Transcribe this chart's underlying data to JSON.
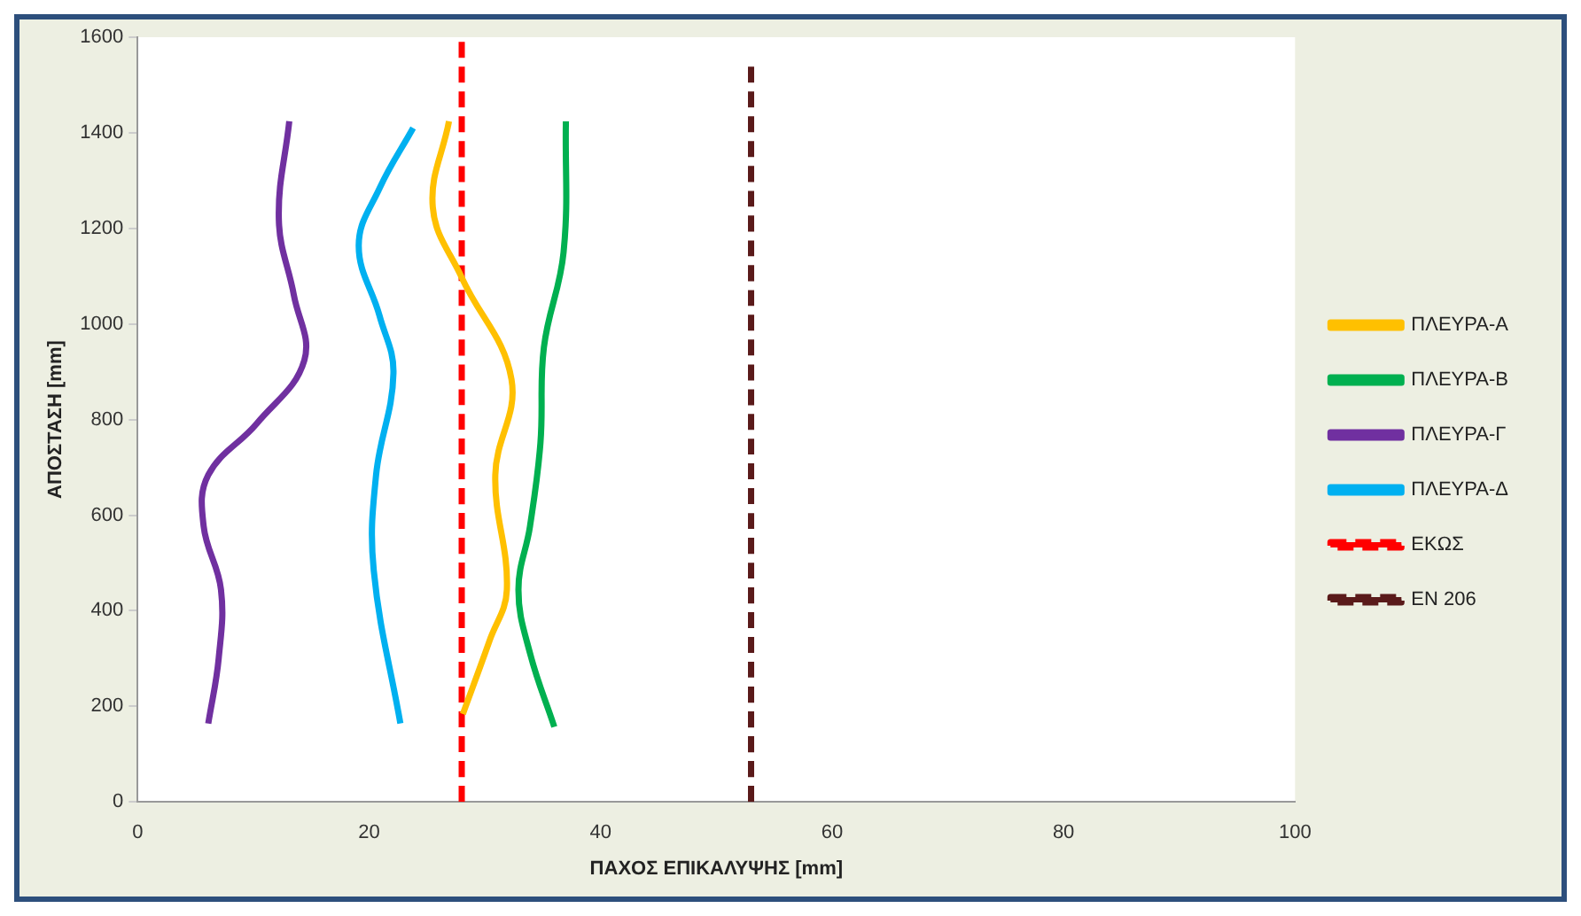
{
  "chart_data": {
    "type": "line",
    "xlabel": "ΠΑΧΟΣ ΕΠΙΚΑΛΥΨΗΣ [mm]",
    "ylabel": "ΑΠΟΣΤΑΣΗ [mm]",
    "xlim": [
      0,
      100
    ],
    "xticks": [
      0,
      20,
      40,
      60,
      80,
      100
    ],
    "ylim": [
      0,
      1600
    ],
    "yticks": [
      0,
      200,
      400,
      600,
      800,
      1000,
      1200,
      1400,
      1600
    ],
    "grid": false,
    "legend": "right",
    "series": [
      {
        "name": "ΠΛΕΥΡΑ-Α",
        "color": "#ffc000",
        "x": [
          28.1,
          30.4,
          31.9,
          30.9,
          32.3,
          28.0,
          25.5,
          26.9
        ],
        "values": [
          184,
          337,
          444,
          684,
          884,
          1097,
          1244,
          1424
        ]
      },
      {
        "name": "ΠΛΕΥΡΑ-Β",
        "color": "#00b050",
        "x": [
          36.0,
          33.9,
          32.9,
          33.9,
          34.8,
          35.1,
          36.8,
          37.0
        ],
        "values": [
          157,
          311,
          444,
          577,
          751,
          951,
          1150,
          1424
        ]
      },
      {
        "name": "ΠΛΕΥΡΑ-Γ",
        "color": "#7030a0",
        "x": [
          6.1,
          7.0,
          7.2,
          5.7,
          6.1,
          10.3,
          14.4,
          13.5,
          12.2,
          13.1
        ],
        "values": [
          164,
          300,
          444,
          577,
          684,
          792,
          924,
          1060,
          1217,
          1424
        ]
      },
      {
        "name": "ΠΛΕΥΡΑ-Δ",
        "color": "#00b0f0",
        "x": [
          22.7,
          20.4,
          20.6,
          22.1,
          20.9,
          19.1,
          20.9,
          23.8
        ],
        "values": [
          164,
          484,
          684,
          897,
          1017,
          1164,
          1284,
          1410
        ]
      },
      {
        "name": "ΕΚΩΣ",
        "color": "#ff0000",
        "line_style": "dashed",
        "x": [
          28,
          28
        ],
        "values": [
          0,
          1600
        ]
      },
      {
        "name": "ΕΝ 206",
        "color": "#5a1a1a",
        "line_style": "dashed",
        "x": [
          53,
          53
        ],
        "values": [
          0,
          1550
        ]
      }
    ]
  }
}
